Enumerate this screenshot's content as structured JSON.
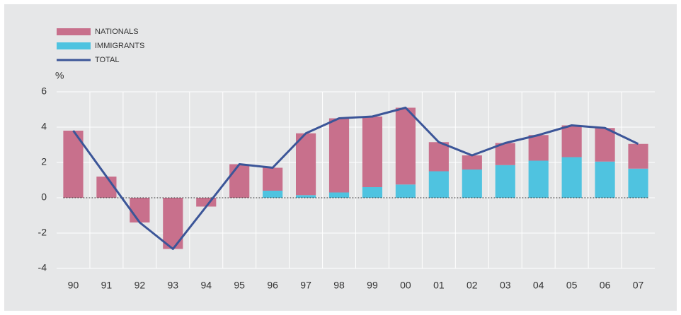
{
  "chart_data": {
    "type": "bar",
    "y_axis_label": "%",
    "categories": [
      "90",
      "91",
      "92",
      "93",
      "94",
      "95",
      "96",
      "97",
      "98",
      "99",
      "00",
      "01",
      "02",
      "03",
      "04",
      "05",
      "06",
      "07"
    ],
    "series": [
      {
        "name": "NATIONALS",
        "color": "#c8708c",
        "values": [
          3.8,
          1.2,
          -1.4,
          -2.9,
          -0.5,
          1.9,
          1.3,
          3.5,
          4.2,
          4.0,
          4.35,
          1.65,
          0.8,
          1.25,
          1.45,
          1.8,
          1.9,
          1.4
        ]
      },
      {
        "name": "IMMIGRANTS",
        "color": "#4fc3e0",
        "values": [
          0,
          0,
          0,
          0,
          0,
          0,
          0.4,
          0.15,
          0.3,
          0.6,
          0.75,
          1.5,
          1.6,
          1.85,
          2.1,
          2.3,
          2.05,
          1.65
        ]
      },
      {
        "name": "TOTAL",
        "type": "line",
        "color": "#3b5598",
        "values": [
          3.8,
          1.2,
          -1.4,
          -2.9,
          -0.5,
          1.9,
          1.7,
          3.65,
          4.5,
          4.6,
          5.1,
          3.15,
          2.4,
          3.1,
          3.55,
          4.1,
          3.95,
          3.05
        ]
      }
    ],
    "ylim": [
      -4,
      6
    ],
    "yticks": [
      -4,
      -2,
      0,
      2,
      4,
      6
    ],
    "grid": true,
    "legend": "top-left"
  }
}
